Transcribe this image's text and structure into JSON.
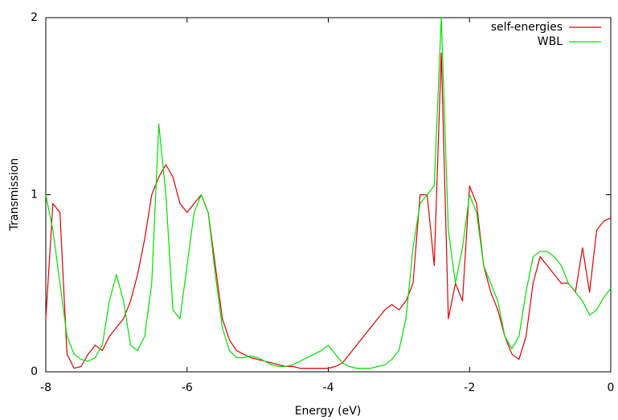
{
  "chart_data": {
    "type": "line",
    "x_label": "Energy (eV)",
    "y_label": "Transmission",
    "x": [
      -8.0,
      -7.9,
      -7.8,
      -7.7,
      -7.6,
      -7.5,
      -7.4,
      -7.3,
      -7.2,
      -7.1,
      -7.0,
      -6.9,
      -6.8,
      -6.7,
      -6.6,
      -6.5,
      -6.4,
      -6.3,
      -6.2,
      -6.1,
      -6.0,
      -5.9,
      -5.8,
      -5.7,
      -5.6,
      -5.5,
      -5.4,
      -5.3,
      -5.2,
      -5.1,
      -5.0,
      -4.9,
      -4.8,
      -4.7,
      -4.6,
      -4.5,
      -4.4,
      -4.3,
      -4.2,
      -4.1,
      -4.0,
      -3.9,
      -3.8,
      -3.7,
      -3.6,
      -3.5,
      -3.4,
      -3.3,
      -3.2,
      -3.1,
      -3.0,
      -2.9,
      -2.8,
      -2.7,
      -2.6,
      -2.5,
      -2.4,
      -2.3,
      -2.2,
      -2.1,
      -2.0,
      -1.9,
      -1.8,
      -1.7,
      -1.6,
      -1.5,
      -1.4,
      -1.3,
      -1.2,
      -1.1,
      -1.0,
      -0.9,
      -0.8,
      -0.7,
      -0.6,
      -0.5,
      -0.4,
      -0.3,
      -0.2,
      -0.1,
      0
    ],
    "series": [
      {
        "name": "self-energies",
        "color": "#e00000",
        "values": [
          0.3,
          0.95,
          0.9,
          0.1,
          0.02,
          0.03,
          0.1,
          0.15,
          0.12,
          0.2,
          0.25,
          0.3,
          0.4,
          0.55,
          0.75,
          1.0,
          1.1,
          1.17,
          1.1,
          0.95,
          0.9,
          0.95,
          1.0,
          0.9,
          0.6,
          0.3,
          0.18,
          0.12,
          0.1,
          0.08,
          0.07,
          0.06,
          0.05,
          0.04,
          0.03,
          0.03,
          0.02,
          0.02,
          0.02,
          0.02,
          0.02,
          0.03,
          0.05,
          0.1,
          0.15,
          0.2,
          0.25,
          0.3,
          0.35,
          0.38,
          0.35,
          0.4,
          0.5,
          1.0,
          1.0,
          0.6,
          1.8,
          0.3,
          0.5,
          0.4,
          1.05,
          0.95,
          0.6,
          0.45,
          0.35,
          0.2,
          0.1,
          0.07,
          0.2,
          0.5,
          0.65,
          0.6,
          0.55,
          0.5,
          0.5,
          0.45,
          0.7,
          0.45,
          0.8,
          0.85,
          0.87
        ]
      },
      {
        "name": "WBL",
        "color": "#00e000",
        "values": [
          1.0,
          0.8,
          0.5,
          0.2,
          0.1,
          0.07,
          0.06,
          0.08,
          0.15,
          0.4,
          0.55,
          0.4,
          0.15,
          0.12,
          0.2,
          0.5,
          1.4,
          1.0,
          0.35,
          0.3,
          0.6,
          0.9,
          1.0,
          0.9,
          0.55,
          0.25,
          0.12,
          0.08,
          0.08,
          0.09,
          0.08,
          0.06,
          0.04,
          0.03,
          0.03,
          0.04,
          0.06,
          0.08,
          0.1,
          0.12,
          0.15,
          0.1,
          0.05,
          0.03,
          0.02,
          0.02,
          0.02,
          0.03,
          0.04,
          0.07,
          0.12,
          0.3,
          0.7,
          0.95,
          1.0,
          1.05,
          2.0,
          0.8,
          0.5,
          0.7,
          1.0,
          0.9,
          0.6,
          0.5,
          0.4,
          0.2,
          0.13,
          0.2,
          0.45,
          0.65,
          0.68,
          0.68,
          0.65,
          0.6,
          0.5,
          0.45,
          0.4,
          0.32,
          0.35,
          0.42,
          0.47
        ]
      }
    ],
    "xlim": [
      -8,
      0
    ],
    "xticks": [
      -8,
      -6,
      -4,
      -2,
      0
    ],
    "ylim": [
      0,
      2
    ],
    "yticks": [
      0,
      1,
      2
    ],
    "grid": false,
    "legend": "upper right"
  }
}
